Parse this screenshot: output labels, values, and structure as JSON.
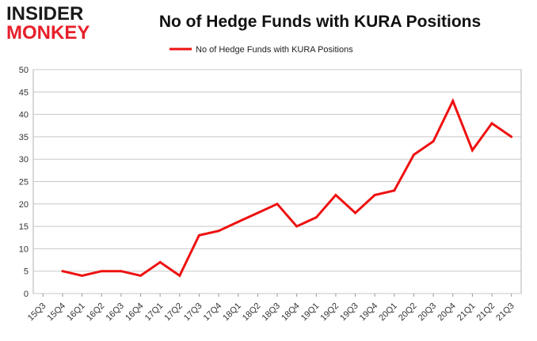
{
  "logo": {
    "line1": "INSIDER",
    "line2": "MONKEY",
    "red": "#e6202a",
    "dark": "#1a1a1a"
  },
  "chart_data": {
    "type": "line",
    "title": "No of Hedge Funds with KURA Positions",
    "categories": [
      "15Q3",
      "15Q4",
      "16Q1",
      "16Q2",
      "16Q3",
      "16Q4",
      "17Q1",
      "17Q2",
      "17Q3",
      "17Q4",
      "18Q1",
      "18Q2",
      "18Q3",
      "18Q4",
      "19Q1",
      "19Q2",
      "19Q3",
      "19Q4",
      "20Q1",
      "20Q2",
      "20Q3",
      "20Q4",
      "21Q1",
      "21Q2",
      "21Q3"
    ],
    "series": [
      {
        "name": "No of Hedge Funds with KURA Positions",
        "color": "#ee1111",
        "values": [
          null,
          5,
          4,
          5,
          5,
          4,
          7,
          4,
          13,
          14,
          16,
          18,
          20,
          15,
          17,
          22,
          18,
          22,
          23,
          31,
          34,
          43,
          32,
          38,
          35
        ]
      }
    ],
    "ylim": [
      0,
      50
    ],
    "yticks": [
      0,
      5,
      10,
      15,
      20,
      25,
      30,
      35,
      40,
      45,
      50
    ],
    "xlabel": "",
    "ylabel": "",
    "grid": true,
    "legend": "top-center"
  }
}
